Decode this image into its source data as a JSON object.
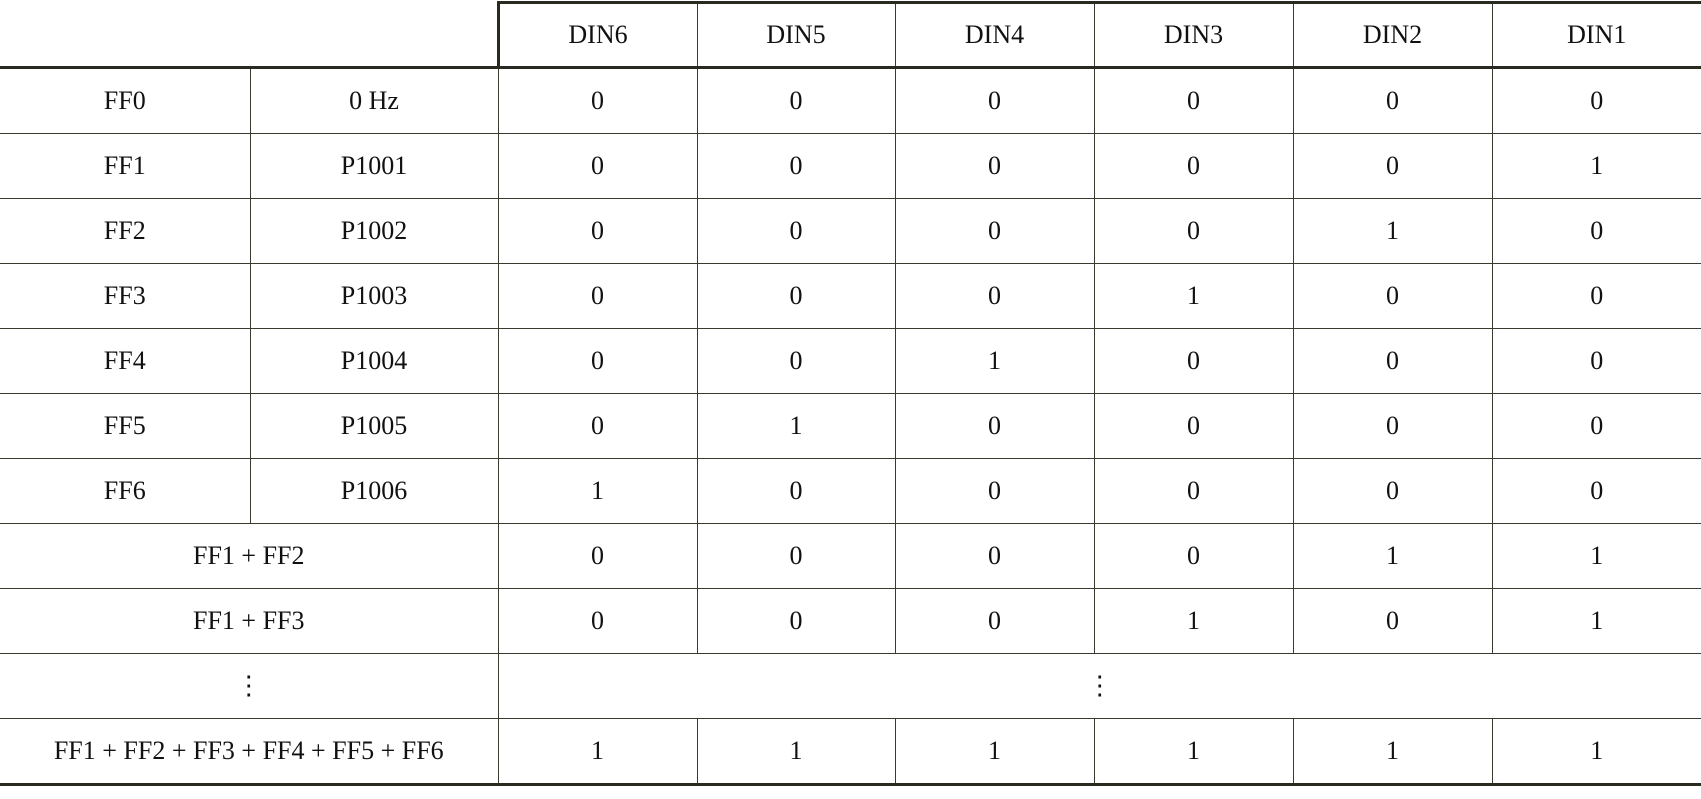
{
  "header": {
    "columns": [
      "DIN6",
      "DIN5",
      "DIN4",
      "DIN3",
      "DIN2",
      "DIN1"
    ]
  },
  "rows": [
    {
      "label": "FF0",
      "param": "0 Hz",
      "values": [
        "0",
        "0",
        "0",
        "0",
        "0",
        "0"
      ]
    },
    {
      "label": "FF1",
      "param": "P1001",
      "values": [
        "0",
        "0",
        "0",
        "0",
        "0",
        "1"
      ]
    },
    {
      "label": "FF2",
      "param": "P1002",
      "values": [
        "0",
        "0",
        "0",
        "0",
        "1",
        "0"
      ]
    },
    {
      "label": "FF3",
      "param": "P1003",
      "values": [
        "0",
        "0",
        "0",
        "1",
        "0",
        "0"
      ]
    },
    {
      "label": "FF4",
      "param": "P1004",
      "values": [
        "0",
        "0",
        "1",
        "0",
        "0",
        "0"
      ]
    },
    {
      "label": "FF5",
      "param": "P1005",
      "values": [
        "0",
        "1",
        "0",
        "0",
        "0",
        "0"
      ]
    },
    {
      "label": "FF6",
      "param": "P1006",
      "values": [
        "1",
        "0",
        "0",
        "0",
        "0",
        "0"
      ]
    }
  ],
  "combo_rows": [
    {
      "label": "FF1 + FF2",
      "values": [
        "0",
        "0",
        "0",
        "0",
        "1",
        "1"
      ]
    },
    {
      "label": "FF1 + FF3",
      "values": [
        "0",
        "0",
        "0",
        "1",
        "0",
        "1"
      ]
    }
  ],
  "ellipsis_row": {
    "label": "⋮",
    "values": "⋮"
  },
  "final_row": {
    "label": "FF1 + FF2 + FF3 + FF4 + FF5 + FF6",
    "values": [
      "1",
      "1",
      "1",
      "1",
      "1",
      "1"
    ]
  }
}
